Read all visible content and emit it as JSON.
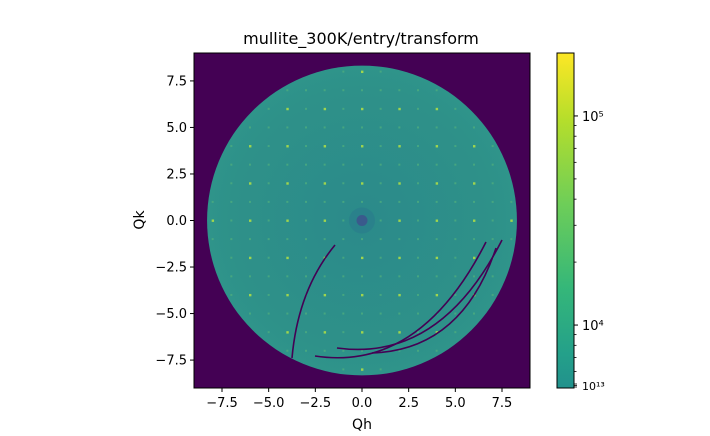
{
  "chart_data": {
    "type": "heatmap",
    "title": "mullite_300K/entry/transform",
    "xlabel": "Qh",
    "ylabel": "Qk",
    "xlim": [
      -9,
      9
    ],
    "ylim": [
      -9,
      9
    ],
    "x_ticks": [
      -7.5,
      -5.0,
      -2.5,
      0.0,
      2.5,
      5.0,
      7.5
    ],
    "x_tick_labels": [
      "−7.5",
      "−5.0",
      "−2.5",
      "0.0",
      "2.5",
      "5.0",
      "7.5"
    ],
    "y_ticks": [
      7.5,
      5.0,
      2.5,
      0.0,
      -2.5,
      -5.0,
      -7.5
    ],
    "y_tick_labels": [
      "7.5",
      "5.0",
      "2.5",
      "0.0",
      "−2.5",
      "−5.0",
      "−7.5"
    ],
    "detector_radius": 8.3,
    "lattice_spacing": 1.0,
    "central_spot": [
      0.0,
      0.0
    ],
    "colormap": "viridis",
    "colorbar": {
      "scale": "log",
      "range": [
        5000,
        200000
      ],
      "major_ticks": [
        10000,
        100000
      ],
      "major_tick_labels": [
        "10⁴",
        "10⁵"
      ],
      "crowded_bottom_labels": "10¹³",
      "colors": [
        "#440154",
        "#3b528b",
        "#21918c",
        "#5ec962",
        "#fde725"
      ]
    },
    "colors": {
      "background": "#440154",
      "diffuse": "#2d8e8a",
      "weak_spot": "#4fae7e",
      "strong_spot": "#a6d94a",
      "center": "#3a5a8c"
    }
  }
}
